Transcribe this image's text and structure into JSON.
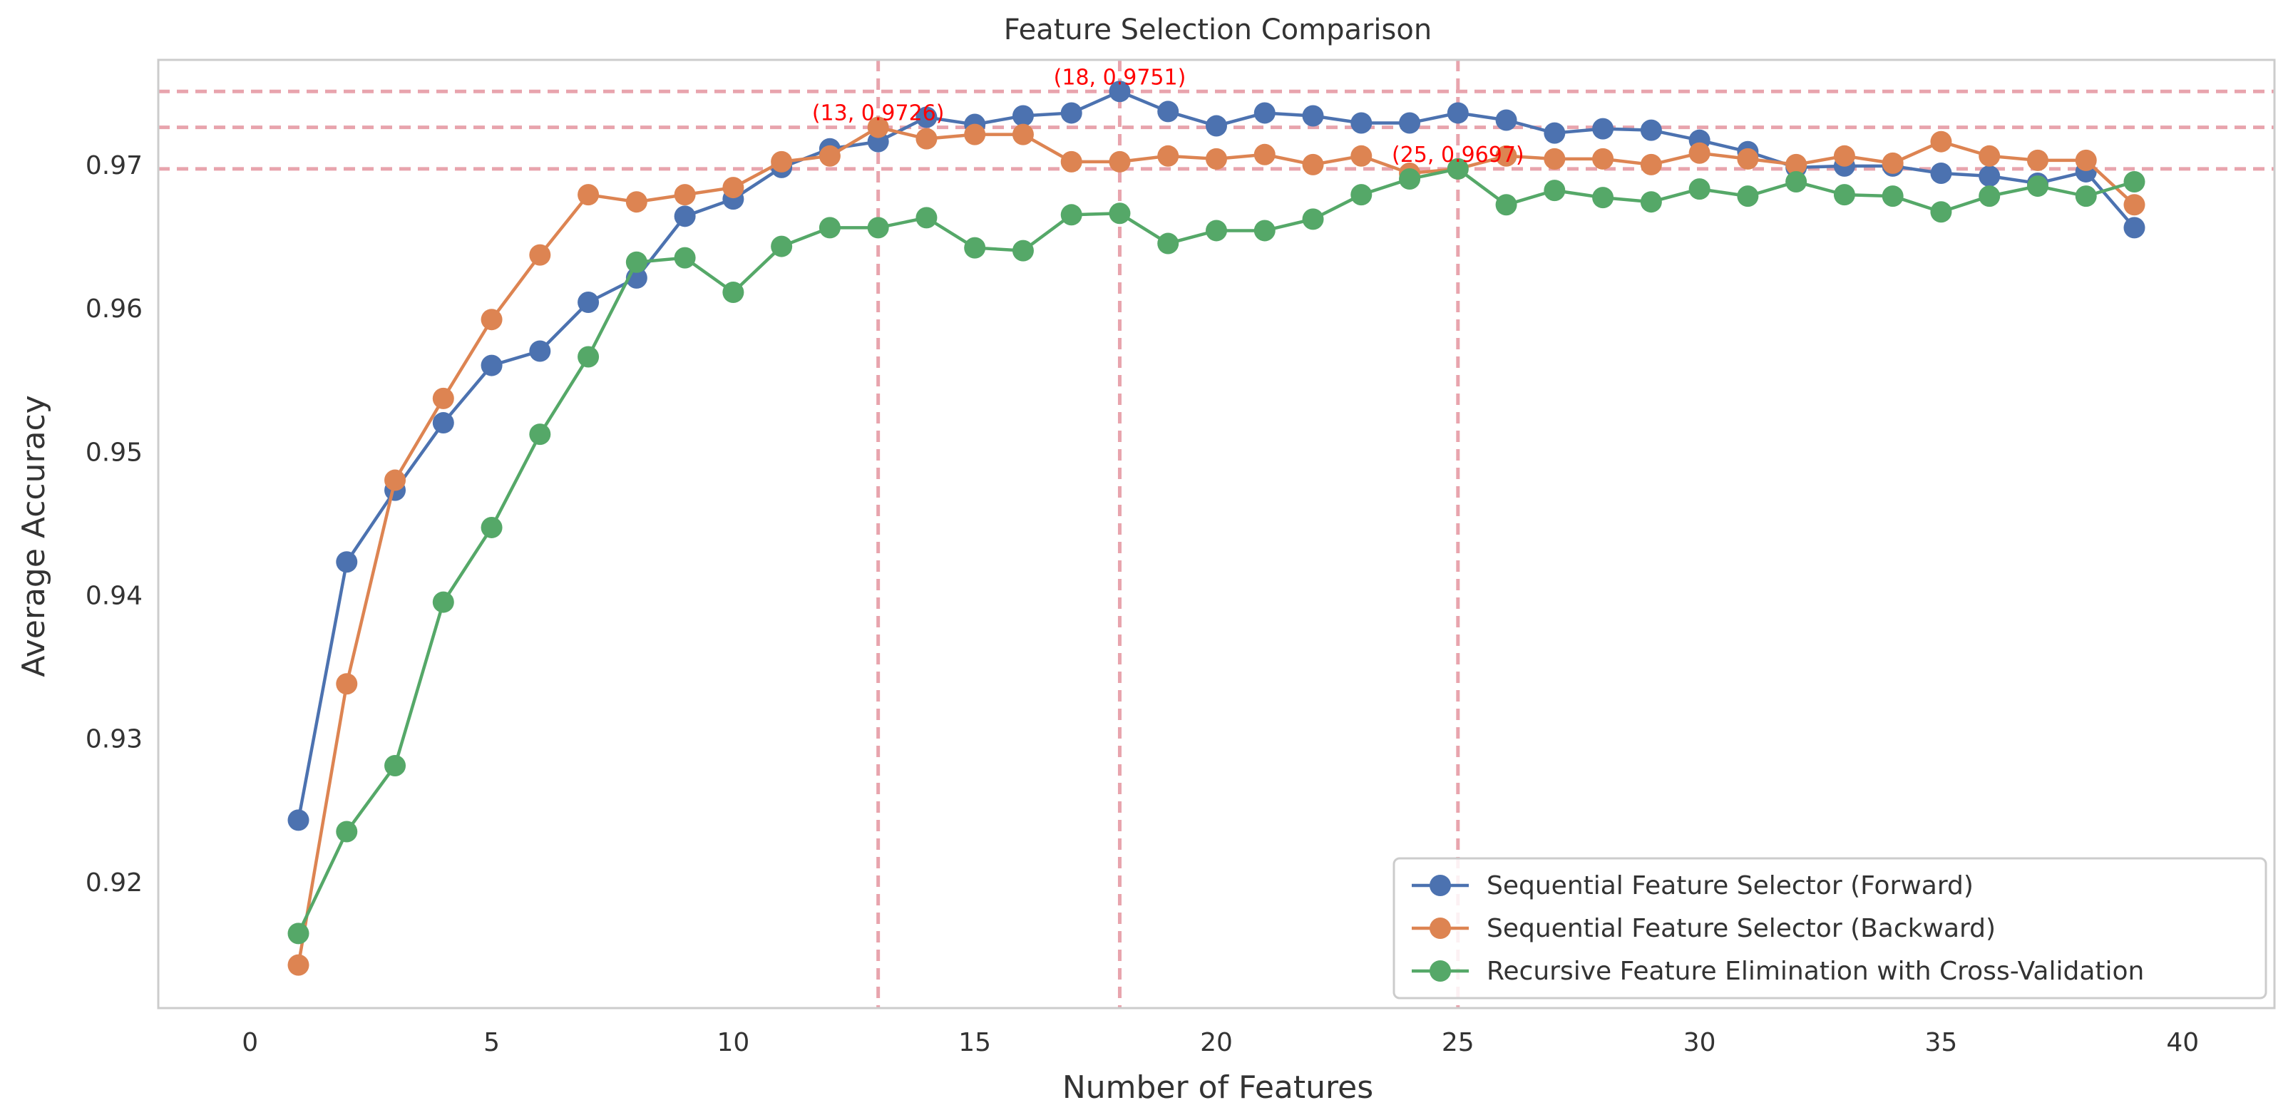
{
  "chart_data": {
    "type": "line",
    "title": "Feature Selection Comparison",
    "xlabel": "Number of Features",
    "ylabel": "Average Accuracy",
    "xlim": [
      -1.9,
      41.9
    ],
    "ylim": [
      0.9112,
      0.9773
    ],
    "x_ticks": [
      0,
      5,
      10,
      15,
      20,
      25,
      30,
      35,
      40
    ],
    "y_ticks": [
      0.92,
      0.93,
      0.94,
      0.95,
      0.96,
      0.97
    ],
    "grid": false,
    "legend_position": "lower right",
    "x": [
      1,
      2,
      3,
      4,
      5,
      6,
      7,
      8,
      9,
      10,
      11,
      12,
      13,
      14,
      15,
      16,
      17,
      18,
      19,
      20,
      21,
      22,
      23,
      24,
      25,
      26,
      27,
      28,
      29,
      30,
      31,
      32,
      33,
      34,
      35,
      36,
      37,
      38,
      39
    ],
    "series": [
      {
        "name": "Sequential Feature Selector (Forward)",
        "color": "#4c72b0",
        "values": [
          0.9243,
          0.9423,
          0.9473,
          0.952,
          0.956,
          0.957,
          0.9604,
          0.9621,
          0.9664,
          0.9676,
          0.9698,
          0.9711,
          0.9716,
          0.9733,
          0.9728,
          0.9734,
          0.9736,
          0.9751,
          0.9737,
          0.9727,
          0.9736,
          0.9734,
          0.9729,
          0.9729,
          0.9736,
          0.9731,
          0.9722,
          0.9725,
          0.9724,
          0.9717,
          0.9709,
          0.9698,
          0.9699,
          0.9699,
          0.9694,
          0.9692,
          0.9687,
          0.9695,
          0.9656
        ]
      },
      {
        "name": "Sequential Feature Selector (Backward)",
        "color": "#dd8452",
        "values": [
          0.9142,
          0.9338,
          0.948,
          0.9537,
          0.9592,
          0.9637,
          0.9679,
          0.9674,
          0.9679,
          0.9684,
          0.9702,
          0.9706,
          0.9726,
          0.9718,
          0.9721,
          0.9721,
          0.9702,
          0.9702,
          0.9706,
          0.9704,
          0.9707,
          0.97,
          0.9706,
          0.9694,
          0.9697,
          0.9706,
          0.9704,
          0.9704,
          0.97,
          0.9708,
          0.9704,
          0.97,
          0.9706,
          0.9701,
          0.9716,
          0.9706,
          0.9703,
          0.9703,
          0.9672
        ]
      },
      {
        "name": "Recursive Feature Elimination with Cross-Validation",
        "color": "#55a868",
        "values": [
          0.9164,
          0.9235,
          0.9281,
          0.9395,
          0.9447,
          0.9512,
          0.9566,
          0.9632,
          0.9635,
          0.9611,
          0.9643,
          0.9656,
          0.9656,
          0.9663,
          0.9642,
          0.964,
          0.9665,
          0.9666,
          0.9645,
          0.9654,
          0.9654,
          0.9662,
          0.9679,
          0.969,
          0.9697,
          0.9672,
          0.9682,
          0.9677,
          0.9674,
          0.9683,
          0.9678,
          0.9688,
          0.9679,
          0.9678,
          0.9667,
          0.9678,
          0.9685,
          0.9678,
          0.9688
        ]
      }
    ],
    "reference_lines": {
      "color": "#e8a4ad",
      "vertical_x": [
        13,
        18,
        25
      ],
      "horizontal_y": [
        0.9751,
        0.9726,
        0.9697
      ]
    },
    "annotations": [
      {
        "x": 13,
        "y": 0.9726,
        "text": "(13, 0.9726)",
        "color": "#ff0000"
      },
      {
        "x": 18,
        "y": 0.9751,
        "text": "(18, 0.9751)",
        "color": "#ff0000"
      },
      {
        "x": 25,
        "y": 0.9697,
        "text": "(25, 0.9697)",
        "color": "#ff0000"
      }
    ],
    "frame_color": "#cccccc",
    "text_color": "#333333"
  }
}
